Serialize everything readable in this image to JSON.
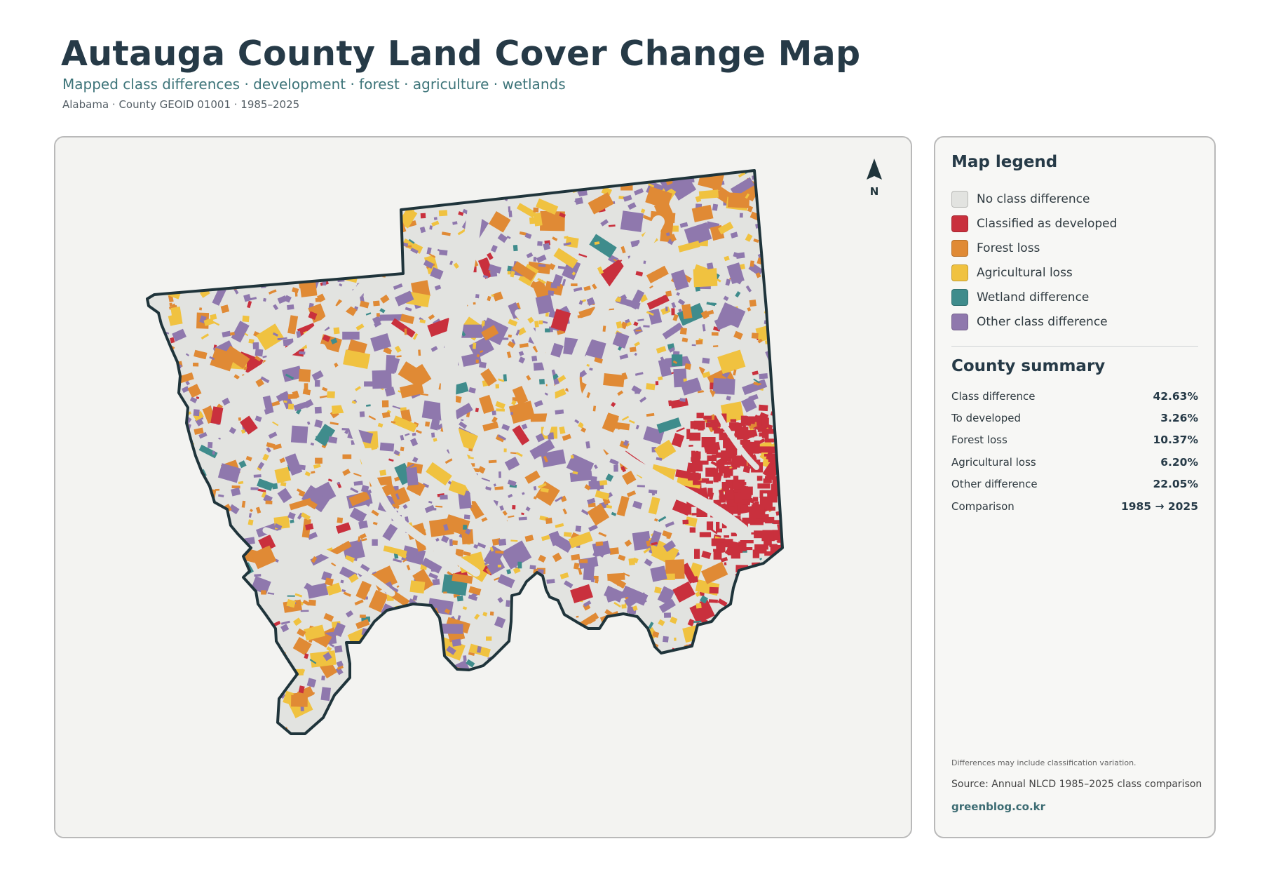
{
  "header": {
    "title": "Autauga County Land Cover Change Map",
    "subtitle": "Mapped class differences · development · forest · agriculture · wetlands",
    "meta": "Alabama · County GEOID 01001 · 1985–2025"
  },
  "map": {
    "north_label": "N",
    "north_arrow_icon": "north-arrow-icon",
    "colors": {
      "no_difference": "#e2e3e0",
      "developed": "#c9303d",
      "forest_loss": "#e08a35",
      "agricultural_loss": "#f0c240",
      "wetland": "#3f8c8c",
      "other": "#8f78ad",
      "outline": "#1f343b",
      "background": "#f3f3f1"
    }
  },
  "legend": {
    "title": "Map legend",
    "items": [
      {
        "label": "No class difference",
        "color": "#e2e3e0"
      },
      {
        "label": "Classified as developed",
        "color": "#c9303d"
      },
      {
        "label": "Forest loss",
        "color": "#e08a35"
      },
      {
        "label": "Agricultural loss",
        "color": "#f0c240"
      },
      {
        "label": "Wetland difference",
        "color": "#3f8c8c"
      },
      {
        "label": "Other class difference",
        "color": "#8f78ad"
      }
    ]
  },
  "summary": {
    "title": "County summary",
    "rows": [
      {
        "label": "Class difference",
        "value": "42.63%"
      },
      {
        "label": "To developed",
        "value": "3.26%"
      },
      {
        "label": "Forest loss",
        "value": "10.37%"
      },
      {
        "label": "Agricultural loss",
        "value": "6.20%"
      },
      {
        "label": "Other difference",
        "value": "22.05%"
      },
      {
        "label": "Comparison",
        "value": "1985 → 2025"
      }
    ]
  },
  "footer": {
    "note": "Differences may include classification variation.",
    "source": "Source: Annual NLCD 1985–2025 class comparison",
    "brand": "greenblog.co.kr"
  }
}
